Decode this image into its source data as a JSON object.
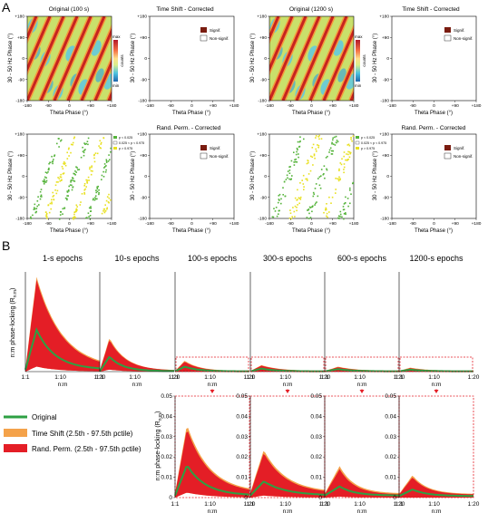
{
  "figure": {
    "panel_a_letter": "A",
    "panel_b_letter": "B",
    "colorbar": {
      "max_label": "max",
      "min_label": "min",
      "units_label": "counts"
    },
    "signif_legend": {
      "signif": "Signif.",
      "nonsignif": "Non-signif."
    },
    "p_legend": [
      "p < 0.025",
      "0.025 < p < 0.975",
      "p > 0.975"
    ],
    "phase_ticks": [
      "-180",
      "-90",
      "0",
      "+90",
      "+180"
    ],
    "y_phase_ticks": [
      "+180",
      "+90",
      "0",
      "-90",
      "-180"
    ],
    "panel_a_titles": [
      "Original (100 s)",
      "Time Shift - Corrected",
      "Original (1200 s)",
      "Time Shift - Corrected"
    ],
    "panel_a_row2_titles": [
      "",
      "Rand. Perm. - Corrected",
      "",
      "Rand. Perm. - Corrected"
    ],
    "panel_a_xlabel": "Theta Phase (°)",
    "panel_a_ylabel": "30 - 50 Hz Phase (°)",
    "panel_b_epoch_titles": [
      "1-s epochs",
      "10-s epochs",
      "100-s epochs",
      "300-s epochs",
      "600-s epochs",
      "1200-s epochs"
    ],
    "panel_b_ylabel": "n:m phase-locking (R",
    "panel_b_ylabel_sub": "n:m",
    "panel_b_ylabel_close": ")",
    "panel_b_xlabel": "n:m",
    "panel_b_xticks": [
      "1:1",
      "1:10",
      "1:20"
    ],
    "zoom_yticks": [
      "0.05",
      "0.04",
      "0.03",
      "0.02",
      "0.01",
      "0"
    ],
    "legend": [
      {
        "label": "Original",
        "color": "#2ea043"
      },
      {
        "label": "Time Shift (2.5th - 97.5th pctile)",
        "color": "#f4a24a"
      },
      {
        "label": "Rand. Perm. (2.5th - 97.5th pctile)",
        "color": "#e41e26"
      }
    ],
    "colors": {
      "original": "#2ea043",
      "timeshift": "#f4a24a",
      "randperm": "#e41e26",
      "signif": "#7a1c10",
      "green_dot": "#55b33b",
      "yellow_dot": "#e8e020",
      "zoom_box": "#e41e26"
    }
  }
}
